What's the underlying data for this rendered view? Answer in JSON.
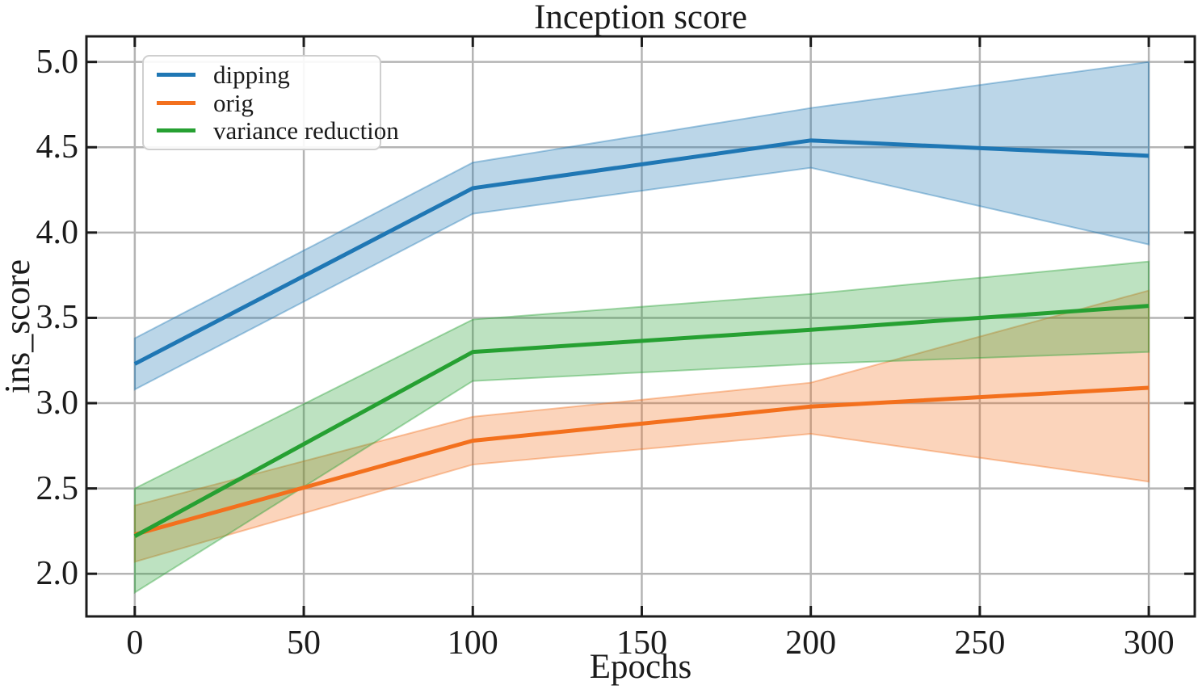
{
  "chart_data": {
    "type": "line",
    "title": "Inception score",
    "xlabel": "Epochs",
    "ylabel": "ins_score",
    "grid": true,
    "legend": {
      "position": "upper left"
    },
    "x": [
      0,
      100,
      200,
      300
    ],
    "xlim": [
      -14.3,
      313.6
    ],
    "ylim": [
      1.75,
      5.15
    ],
    "xticks": [
      0,
      50,
      100,
      150,
      200,
      250,
      300
    ],
    "xtick_labels": [
      "0",
      "50",
      "100",
      "150",
      "200",
      "250",
      "300"
    ],
    "yticks": [
      2.0,
      2.5,
      3.0,
      3.5,
      4.0,
      4.5,
      5.0
    ],
    "ytick_labels": [
      "2.0",
      "2.5",
      "3.0",
      "3.5",
      "4.0",
      "4.5",
      "5.0"
    ],
    "band_opacity": 0.3,
    "series": [
      {
        "name": "dipping",
        "color": "#1f77b4",
        "values": [
          3.23,
          4.26,
          4.54,
          4.45
        ],
        "band_lower": [
          3.08,
          4.11,
          4.38,
          3.93
        ],
        "band_upper": [
          3.38,
          4.41,
          4.73,
          5.0
        ]
      },
      {
        "name": "orig",
        "color": "#f3701d",
        "values": [
          2.23,
          2.78,
          2.98,
          3.09
        ],
        "band_lower": [
          2.07,
          2.64,
          2.82,
          2.54
        ],
        "band_upper": [
          2.4,
          2.92,
          3.12,
          3.66
        ]
      },
      {
        "name": "variance reduction",
        "color": "#26a032",
        "values": [
          2.22,
          3.3,
          3.43,
          3.57
        ],
        "band_lower": [
          1.89,
          3.13,
          3.23,
          3.3
        ],
        "band_upper": [
          2.5,
          3.49,
          3.64,
          3.83
        ]
      }
    ]
  }
}
